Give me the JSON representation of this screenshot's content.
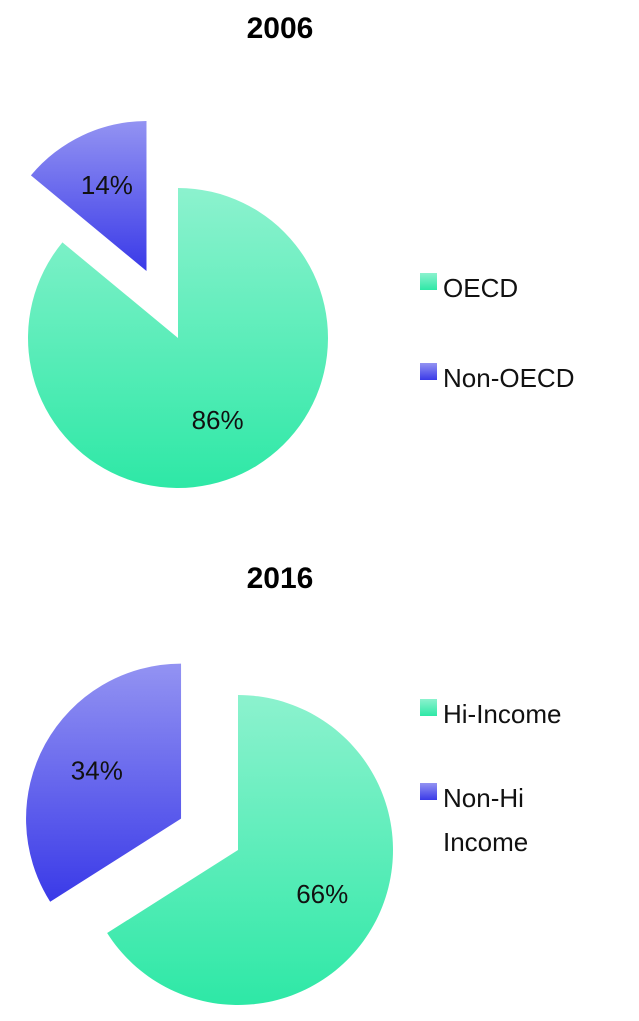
{
  "chart_data": [
    {
      "type": "pie",
      "title": "2006",
      "categories": [
        "OECD",
        "Non-OECD"
      ],
      "values": [
        86,
        14
      ],
      "value_labels": [
        "86%",
        "14%"
      ],
      "colors": [
        "#2ee8a6",
        "#3a3ae8"
      ]
    },
    {
      "type": "pie",
      "title": "2016",
      "categories": [
        "Hi-Income",
        "Non-Hi Income"
      ],
      "values": [
        66,
        34
      ],
      "value_labels": [
        "66%",
        "34%"
      ],
      "colors": [
        "#2ee8a6",
        "#3a3ae8"
      ]
    }
  ]
}
